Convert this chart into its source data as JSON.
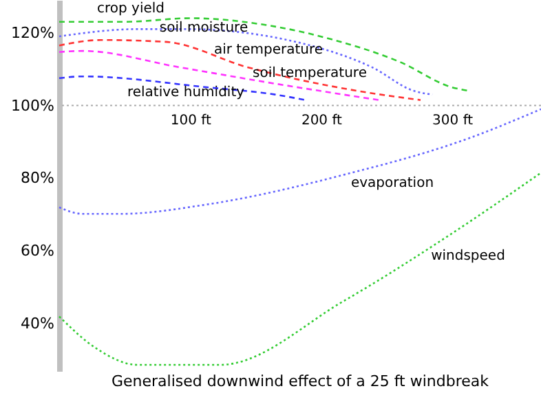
{
  "chart_data": {
    "type": "line",
    "title": "Generalised downwind effect  of a 25 ft windbreak",
    "xlim": [
      0,
      368
    ],
    "ylim": [
      27,
      129
    ],
    "xticks": [
      {
        "value": 100,
        "label": "100 ft"
      },
      {
        "value": 200,
        "label": "200 ft"
      },
      {
        "value": 300,
        "label": "300 ft"
      }
    ],
    "ref_lines": [
      {
        "axis": "y",
        "value": 100,
        "color": "#aaaaaa",
        "line_style": "dotted"
      }
    ],
    "yticks": [
      {
        "value": 40,
        "label": "40%"
      },
      {
        "value": 60,
        "label": "60%"
      },
      {
        "value": 80,
        "label": "80%"
      },
      {
        "value": 100,
        "label": "100%"
      },
      {
        "value": 120,
        "label": "120%"
      }
    ],
    "grid": false,
    "series": [
      {
        "name": "crop yield",
        "color": "#33cc33",
        "line_style": "dashed",
        "x": [
          0,
          50,
          100,
          160,
          210,
          260,
          300,
          313
        ],
        "values": [
          123,
          123,
          124,
          122,
          118,
          112,
          105,
          104
        ]
      },
      {
        "name": "soil moisture",
        "color": "#6666ff",
        "line_style": "dotted",
        "x": [
          0,
          60,
          97,
          197,
          239,
          271,
          285
        ],
        "values": [
          119,
          121,
          121,
          116,
          110.5,
          104,
          103
        ]
      },
      {
        "name": "air temperature",
        "color": "#ff3333",
        "line_style": "dashed",
        "x": [
          0,
          32,
          81,
          144,
          228,
          276
        ],
        "values": [
          116.5,
          118,
          117.5,
          110.5,
          104,
          101.5
        ]
      },
      {
        "name": "soil temperature",
        "color": "#ff33ff",
        "line_style": "dashed",
        "x": [
          0,
          18,
          92,
          165,
          244
        ],
        "values": [
          114.7,
          115,
          110.5,
          106,
          101.5
        ]
      },
      {
        "name": "relative humidity",
        "color": "#3333ff",
        "line_style": "dashed",
        "x": [
          0,
          18,
          113,
          165,
          188
        ],
        "values": [
          107.5,
          108,
          105,
          103,
          101.5
        ]
      },
      {
        "name": "evaporation",
        "color": "#6666ff",
        "line_style": "dotted",
        "x": [
          0,
          18,
          47,
          113,
          218,
          313,
          368
        ],
        "values": [
          72,
          70.2,
          70.2,
          72.8,
          81,
          91,
          99
        ]
      },
      {
        "name": "windspeed",
        "color": "#33cc33",
        "line_style": "dotted",
        "x": [
          0,
          28,
          60,
          123,
          218,
          302,
          368
        ],
        "values": [
          42,
          33.3,
          28.7,
          28.7,
          46.4,
          65.3,
          81.5
        ]
      }
    ]
  }
}
